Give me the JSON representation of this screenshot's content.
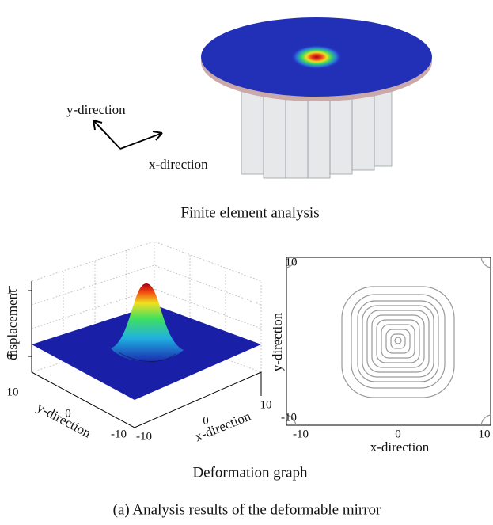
{
  "top": {
    "y_direction": "y-direction",
    "x_direction": "x-direction",
    "caption": "Finite element analysis"
  },
  "surface_plot": {
    "z_label": "displacement",
    "z_ticks": [
      "1",
      "0"
    ],
    "y_label": "y-direction",
    "y_ticks": [
      "10",
      "0",
      "-10"
    ],
    "x_label": "x-direction",
    "x_ticks": [
      "-10",
      "0",
      "10"
    ]
  },
  "contour_plot": {
    "y_label": "y-direction",
    "y_ticks": [
      "10",
      "0",
      "-10"
    ],
    "x_label": "x-direction",
    "x_ticks": [
      "-10",
      "0",
      "10"
    ]
  },
  "caption": "Deformation graph",
  "figure_caption": "(a) Analysis results of the deformable mirror"
}
